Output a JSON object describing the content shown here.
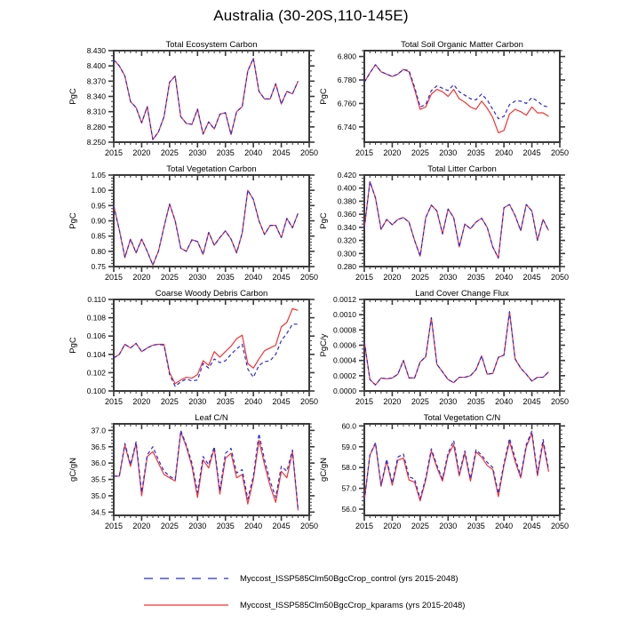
{
  "figure_title": "Australia (30-20S,110-145E)",
  "colors": {
    "control": "#2a2ad8",
    "kparams": "#f53232"
  },
  "axis_color": "#3a3a3a",
  "years": [
    2015,
    2016,
    2017,
    2018,
    2019,
    2020,
    2021,
    2022,
    2023,
    2024,
    2025,
    2026,
    2027,
    2028,
    2029,
    2030,
    2031,
    2032,
    2033,
    2034,
    2035,
    2036,
    2037,
    2038,
    2039,
    2040,
    2041,
    2042,
    2043,
    2044,
    2045,
    2046,
    2047,
    2048
  ],
  "legend": [
    {
      "key": "control",
      "style": "dashed",
      "label": "Myccost_ISSP585Clm50BgcCrop_control (yrs 2015-2048)"
    },
    {
      "key": "kparams",
      "style": "solid",
      "label": "Myccost_ISSP585Clm50BgcCrop_kparams (yrs 2015-2048)"
    }
  ],
  "chart_data": [
    {
      "type": "line",
      "title": "Total Ecosystem Carbon",
      "ylabel": "PgC",
      "xlim": [
        2015,
        2050
      ],
      "xticks": [
        2015,
        2020,
        2025,
        2030,
        2035,
        2040,
        2045,
        2050
      ],
      "ylim": [
        8.25,
        8.43
      ],
      "yticks": [
        8.25,
        8.28,
        8.31,
        8.34,
        8.37,
        8.4,
        8.43
      ],
      "ytick_decimals": 3,
      "yminor": 3,
      "series": [
        {
          "key": "control",
          "name": "Myccost_ISSP585Clm50BgcCrop_control",
          "style": "dashed",
          "values": [
            8.412,
            8.4,
            8.38,
            8.33,
            8.318,
            8.288,
            8.32,
            8.255,
            8.27,
            8.3,
            8.368,
            8.38,
            8.3,
            8.287,
            8.285,
            8.315,
            8.266,
            8.29,
            8.276,
            8.305,
            8.308,
            8.265,
            8.31,
            8.32,
            8.39,
            8.415,
            8.35,
            8.335,
            8.335,
            8.365,
            8.325,
            8.35,
            8.345,
            8.37
          ]
        },
        {
          "key": "kparams",
          "name": "Myccost_ISSP585Clm50BgcCrop_kparams",
          "style": "solid",
          "values": [
            8.412,
            8.4,
            8.38,
            8.33,
            8.318,
            8.288,
            8.32,
            8.255,
            8.27,
            8.3,
            8.368,
            8.38,
            8.3,
            8.287,
            8.285,
            8.315,
            8.266,
            8.29,
            8.276,
            8.305,
            8.308,
            8.265,
            8.31,
            8.32,
            8.39,
            8.415,
            8.35,
            8.335,
            8.335,
            8.365,
            8.325,
            8.35,
            8.345,
            8.37
          ]
        }
      ]
    },
    {
      "type": "line",
      "title": "Total Soil Organic Matter Carbon",
      "ylabel": "PgC",
      "xlim": [
        2015,
        2050
      ],
      "xticks": [
        2015,
        2020,
        2025,
        2030,
        2035,
        2040,
        2045,
        2050
      ],
      "ylim": [
        6.727,
        6.805
      ],
      "yticks": [
        6.74,
        6.76,
        6.78,
        6.8
      ],
      "ytick_decimals": 3,
      "yminor": 4,
      "series": [
        {
          "key": "control",
          "name": "Myccost_ISSP585Clm50BgcCrop_control",
          "style": "dashed",
          "values": [
            6.778,
            6.786,
            6.793,
            6.787,
            6.785,
            6.783,
            6.785,
            6.789,
            6.788,
            6.774,
            6.757,
            6.759,
            6.771,
            6.775,
            6.773,
            6.771,
            6.776,
            6.77,
            6.767,
            6.764,
            6.763,
            6.768,
            6.763,
            6.755,
            6.747,
            6.749,
            6.759,
            6.762,
            6.762,
            6.76,
            6.765,
            6.762,
            6.758,
            6.757
          ]
        },
        {
          "key": "kparams",
          "name": "Myccost_ISSP585Clm50BgcCrop_kparams",
          "style": "solid",
          "values": [
            6.778,
            6.786,
            6.793,
            6.787,
            6.785,
            6.783,
            6.785,
            6.789,
            6.787,
            6.772,
            6.755,
            6.757,
            6.768,
            6.772,
            6.77,
            6.766,
            6.772,
            6.764,
            6.761,
            6.757,
            6.755,
            6.762,
            6.756,
            6.748,
            6.735,
            6.737,
            6.751,
            6.755,
            6.753,
            6.75,
            6.757,
            6.752,
            6.752,
            6.749
          ]
        }
      ]
    },
    {
      "type": "line",
      "title": "Total Vegetation Carbon",
      "ylabel": "PgC",
      "xlim": [
        2015,
        2050
      ],
      "xticks": [
        2015,
        2020,
        2025,
        2030,
        2035,
        2040,
        2045,
        2050
      ],
      "ylim": [
        0.75,
        1.05
      ],
      "yticks": [
        0.75,
        0.8,
        0.85,
        0.9,
        0.95,
        1.0,
        1.05
      ],
      "ytick_decimals": 2,
      "yminor": 5,
      "series": [
        {
          "key": "control",
          "name": "Myccost_ISSP585Clm50BgcCrop_control",
          "style": "dashed",
          "values": [
            0.95,
            0.87,
            0.78,
            0.84,
            0.795,
            0.84,
            0.8,
            0.755,
            0.8,
            0.88,
            0.955,
            0.9,
            0.81,
            0.8,
            0.838,
            0.832,
            0.79,
            0.862,
            0.82,
            0.845,
            0.867,
            0.84,
            0.795,
            0.86,
            1.0,
            0.97,
            0.9,
            0.855,
            0.885,
            0.885,
            0.845,
            0.908,
            0.877,
            0.925
          ]
        },
        {
          "key": "kparams",
          "name": "Myccost_ISSP585Clm50BgcCrop_kparams",
          "style": "solid",
          "values": [
            0.95,
            0.87,
            0.78,
            0.84,
            0.795,
            0.84,
            0.8,
            0.755,
            0.8,
            0.88,
            0.955,
            0.9,
            0.81,
            0.8,
            0.838,
            0.832,
            0.79,
            0.862,
            0.82,
            0.845,
            0.867,
            0.84,
            0.795,
            0.86,
            1.0,
            0.97,
            0.9,
            0.855,
            0.885,
            0.885,
            0.845,
            0.908,
            0.877,
            0.925
          ]
        }
      ]
    },
    {
      "type": "line",
      "title": "Total Litter Carbon",
      "ylabel": "PgC",
      "xlim": [
        2015,
        2050
      ],
      "xticks": [
        2015,
        2020,
        2025,
        2030,
        2035,
        2040,
        2045,
        2050
      ],
      "ylim": [
        0.28,
        0.42
      ],
      "yticks": [
        0.28,
        0.3,
        0.32,
        0.34,
        0.36,
        0.38,
        0.4,
        0.42
      ],
      "ytick_decimals": 3,
      "yminor": 4,
      "series": [
        {
          "key": "control",
          "name": "Myccost_ISSP585Clm50BgcCrop_control",
          "style": "dashed",
          "values": [
            0.338,
            0.41,
            0.385,
            0.337,
            0.352,
            0.344,
            0.352,
            0.355,
            0.348,
            0.32,
            0.296,
            0.355,
            0.374,
            0.365,
            0.33,
            0.368,
            0.355,
            0.31,
            0.345,
            0.338,
            0.348,
            0.354,
            0.34,
            0.31,
            0.293,
            0.37,
            0.375,
            0.358,
            0.335,
            0.375,
            0.365,
            0.32,
            0.352,
            0.335
          ]
        },
        {
          "key": "kparams",
          "name": "Myccost_ISSP585Clm50BgcCrop_kparams",
          "style": "solid",
          "values": [
            0.338,
            0.41,
            0.385,
            0.337,
            0.352,
            0.344,
            0.352,
            0.355,
            0.348,
            0.32,
            0.296,
            0.355,
            0.374,
            0.365,
            0.33,
            0.368,
            0.355,
            0.31,
            0.345,
            0.338,
            0.348,
            0.354,
            0.34,
            0.31,
            0.293,
            0.37,
            0.375,
            0.358,
            0.335,
            0.375,
            0.365,
            0.32,
            0.352,
            0.335
          ]
        }
      ]
    },
    {
      "type": "line",
      "title": "Coarse Woody Debris Carbon",
      "ylabel": "PgC",
      "xlim": [
        2015,
        2050
      ],
      "xticks": [
        2015,
        2020,
        2025,
        2030,
        2035,
        2040,
        2045,
        2050
      ],
      "ylim": [
        0.1,
        0.11
      ],
      "yticks": [
        0.1,
        0.102,
        0.104,
        0.106,
        0.108,
        0.11
      ],
      "ytick_decimals": 3,
      "yminor": 4,
      "series": [
        {
          "key": "control",
          "name": "Myccost_ISSP585Clm50BgcCrop_control",
          "style": "dashed",
          "values": [
            0.1036,
            0.104,
            0.1051,
            0.1047,
            0.1052,
            0.1043,
            0.1047,
            0.105,
            0.1051,
            0.105,
            0.1018,
            0.1005,
            0.101,
            0.1013,
            0.1011,
            0.1012,
            0.103,
            0.1025,
            0.1035,
            0.1031,
            0.1033,
            0.104,
            0.1046,
            0.1051,
            0.1024,
            0.1015,
            0.1028,
            0.1032,
            0.1033,
            0.104,
            0.1055,
            0.1063,
            0.1073,
            0.1073
          ]
        },
        {
          "key": "kparams",
          "name": "Myccost_ISSP585Clm50BgcCrop_kparams",
          "style": "solid",
          "values": [
            0.1036,
            0.104,
            0.1051,
            0.1047,
            0.1052,
            0.1043,
            0.1047,
            0.105,
            0.1051,
            0.1051,
            0.102,
            0.1008,
            0.1012,
            0.1015,
            0.1014,
            0.1018,
            0.1033,
            0.1028,
            0.1043,
            0.1037,
            0.1043,
            0.1049,
            0.1057,
            0.1061,
            0.103,
            0.1025,
            0.1035,
            0.1044,
            0.1047,
            0.105,
            0.107,
            0.1075,
            0.109,
            0.1088
          ]
        }
      ]
    },
    {
      "type": "line",
      "title": "Land Cover Change Flux",
      "ylabel": "PgC/y",
      "xlim": [
        2015,
        2050
      ],
      "xticks": [
        2015,
        2020,
        2025,
        2030,
        2035,
        2040,
        2045,
        2050
      ],
      "ylim": [
        0.0,
        0.0012
      ],
      "yticks": [
        0.0,
        0.0002,
        0.0004,
        0.0006,
        0.0008,
        0.001,
        0.0012
      ],
      "ytick_decimals": 4,
      "yminor": 4,
      "series": [
        {
          "key": "control",
          "name": "Myccost_ISSP585Clm50BgcCrop_control",
          "style": "dashed",
          "values": [
            0.00065,
            0.00015,
            8e-05,
            0.00017,
            0.00016,
            0.00017,
            0.00022,
            0.0004,
            0.00017,
            0.00017,
            0.00038,
            0.00045,
            0.00096,
            0.00035,
            0.00025,
            0.00015,
            0.00011,
            0.00018,
            0.00018,
            0.0002,
            0.00028,
            0.00046,
            0.00022,
            0.00023,
            0.00044,
            0.00047,
            0.00104,
            0.00042,
            0.0003,
            0.00022,
            0.00013,
            0.00018,
            0.00018,
            0.00025
          ]
        },
        {
          "key": "kparams",
          "name": "Myccost_ISSP585Clm50BgcCrop_kparams",
          "style": "solid",
          "values": [
            0.00065,
            0.00015,
            8e-05,
            0.00017,
            0.00016,
            0.00017,
            0.00022,
            0.0004,
            0.00017,
            0.00017,
            0.00038,
            0.00045,
            0.00096,
            0.00035,
            0.00025,
            0.00015,
            0.00011,
            0.00018,
            0.00018,
            0.0002,
            0.00028,
            0.00046,
            0.00022,
            0.00023,
            0.00044,
            0.00047,
            0.00104,
            0.00042,
            0.0003,
            0.00022,
            0.00013,
            0.00018,
            0.00018,
            0.00025
          ]
        }
      ]
    },
    {
      "type": "line",
      "title": "Leaf C/N",
      "ylabel": "gC/gN",
      "xlim": [
        2015,
        2050
      ],
      "xticks": [
        2015,
        2020,
        2025,
        2030,
        2035,
        2040,
        2045,
        2050
      ],
      "ylim": [
        34.4,
        37.2
      ],
      "yticks": [
        34.5,
        35.0,
        35.5,
        36.0,
        36.5,
        37.0
      ],
      "ytick_decimals": 1,
      "yminor": 5,
      "series": [
        {
          "key": "control",
          "name": "Myccost_ISSP585Clm50BgcCrop_control",
          "style": "dashed",
          "values": [
            35.6,
            35.6,
            36.6,
            35.95,
            36.65,
            35.1,
            36.25,
            36.5,
            36.1,
            35.75,
            35.6,
            35.5,
            37.0,
            36.55,
            36.0,
            35.1,
            36.2,
            35.95,
            36.5,
            35.15,
            36.3,
            36.45,
            35.7,
            35.8,
            34.9,
            35.6,
            36.9,
            36.1,
            35.45,
            34.95,
            35.9,
            35.75,
            36.4,
            34.6
          ]
        },
        {
          "key": "kparams",
          "name": "Myccost_ISSP585Clm50BgcCrop_kparams",
          "style": "solid",
          "values": [
            35.6,
            35.6,
            36.55,
            35.9,
            36.6,
            35.0,
            36.2,
            36.35,
            36.0,
            35.65,
            35.55,
            35.45,
            36.95,
            36.5,
            35.9,
            34.95,
            36.1,
            35.85,
            36.45,
            35.05,
            36.15,
            36.3,
            35.55,
            35.65,
            34.75,
            35.5,
            36.7,
            35.95,
            35.3,
            34.8,
            35.75,
            35.55,
            36.35,
            34.55
          ]
        }
      ]
    },
    {
      "type": "line",
      "title": "Total Vegetation C/N",
      "ylabel": "gC/gN",
      "xlim": [
        2015,
        2050
      ],
      "xticks": [
        2015,
        2020,
        2025,
        2030,
        2035,
        2040,
        2045,
        2050
      ],
      "ylim": [
        55.7,
        60.1
      ],
      "yticks": [
        56.0,
        57.0,
        58.0,
        59.0,
        60.0
      ],
      "ytick_decimals": 1,
      "yminor": 5,
      "series": [
        {
          "key": "control",
          "name": "Myccost_ISSP585Clm50BgcCrop_control",
          "style": "dashed",
          "values": [
            56.4,
            58.6,
            59.2,
            57.15,
            58.4,
            57.25,
            58.5,
            58.65,
            57.55,
            57.45,
            56.5,
            57.5,
            58.9,
            58.1,
            57.45,
            58.7,
            59.3,
            57.7,
            58.8,
            57.45,
            58.85,
            58.6,
            58.25,
            58.0,
            56.75,
            58.2,
            59.4,
            58.45,
            57.6,
            59.1,
            59.75,
            57.7,
            59.35,
            57.9
          ]
        },
        {
          "key": "kparams",
          "name": "Myccost_ISSP585Clm50BgcCrop_kparams",
          "style": "solid",
          "values": [
            56.4,
            58.6,
            59.15,
            57.1,
            58.3,
            57.15,
            58.35,
            58.45,
            57.4,
            57.3,
            56.4,
            57.4,
            58.8,
            58.0,
            57.35,
            58.6,
            59.1,
            57.6,
            58.7,
            57.35,
            58.75,
            58.5,
            58.1,
            57.9,
            56.6,
            58.1,
            59.25,
            58.3,
            57.5,
            59.0,
            59.65,
            57.6,
            59.2,
            57.8
          ]
        }
      ]
    }
  ]
}
